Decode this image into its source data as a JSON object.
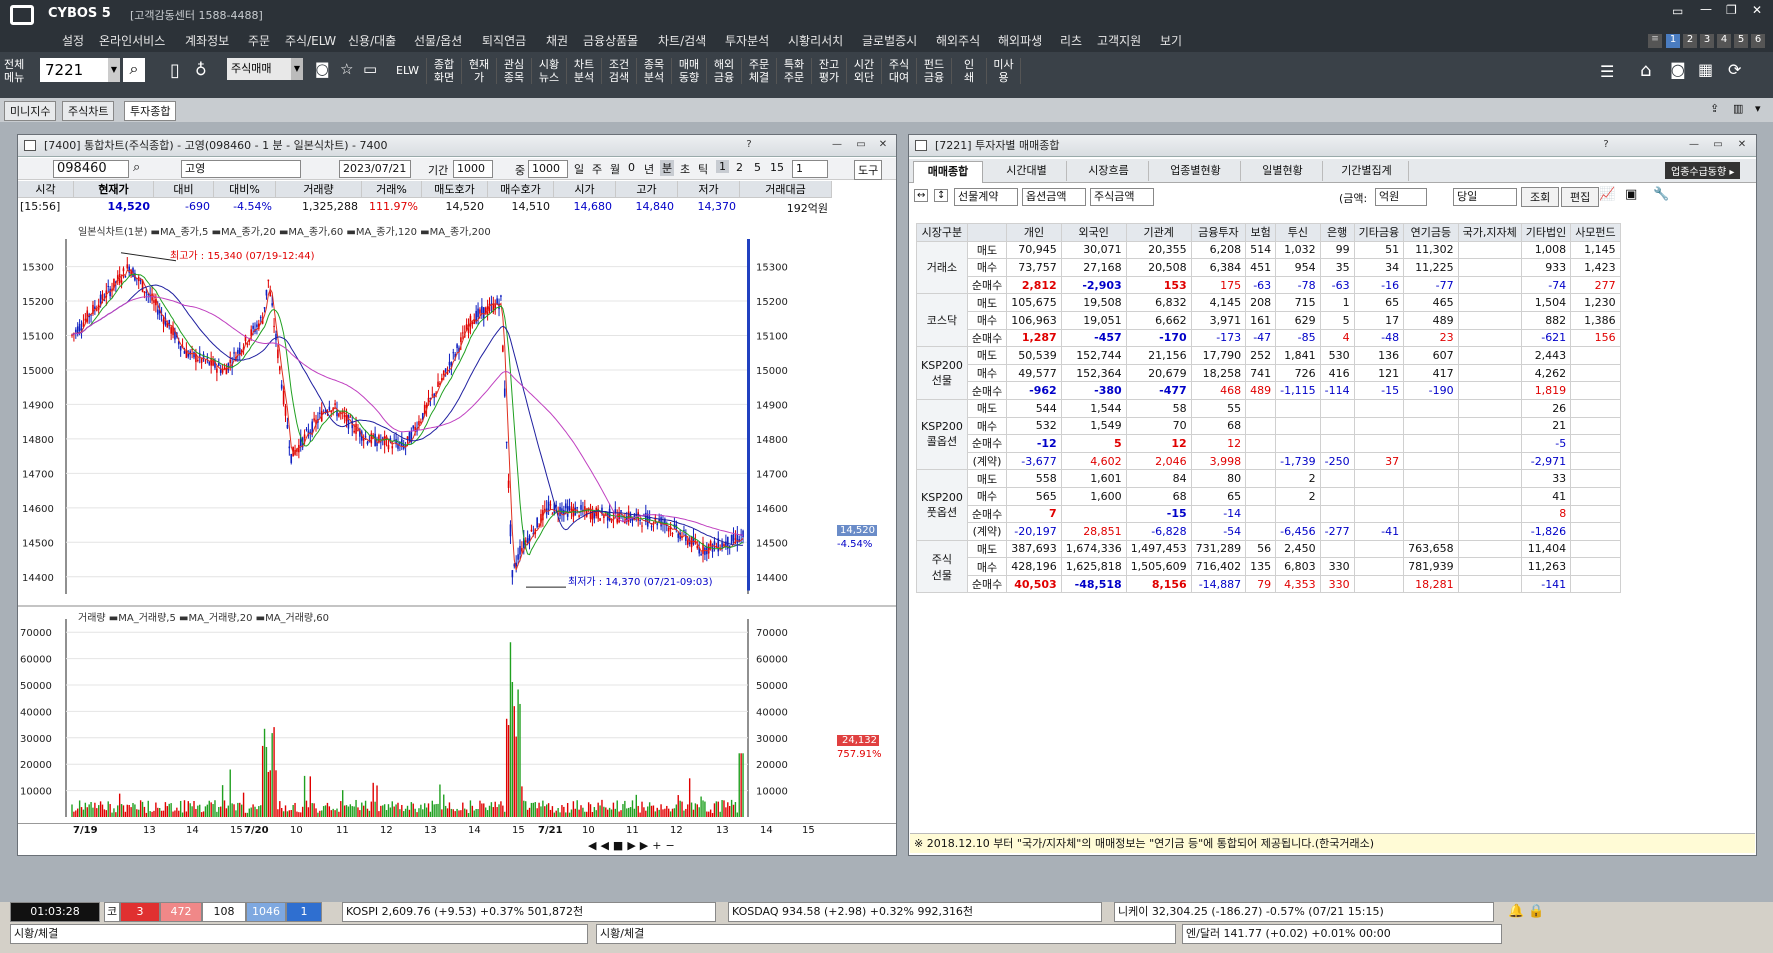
{
  "app": {
    "title": "CYBOS 5",
    "center": "[고객감동센터 1588-4488]",
    "full_menu": "전체\n메뉴",
    "screen_no": "7221",
    "menu_select": "주식매매",
    "elw": "ELW",
    "top_right": [
      "1",
      "2",
      "3",
      "4",
      "5",
      "6"
    ]
  },
  "menu": [
    "설정",
    "온라인서비스",
    "계좌정보",
    "주문",
    "주식/ELW",
    "신용/대출",
    "선물/옵션",
    "퇴직연금",
    "채권",
    "금융상품몰",
    "차트/검색",
    "투자분석",
    "시황리서치",
    "글로벌증시",
    "해외주식",
    "해외파생",
    "리츠",
    "고객지원",
    "보기"
  ],
  "toolbar_buttons": [
    "종합\n화면",
    "현재\n가",
    "관심\n종목",
    "시황\n뉴스",
    "차트\n분석",
    "조건\n검색",
    "종목\n분석",
    "매매\n동향",
    "해외\n금융",
    "주문\n체결",
    "특화\n주문",
    "잔고\n평가",
    "시간\n외단",
    "주식\n대여",
    "펀드\n금융",
    "인\n쇄",
    "미사\n용"
  ],
  "quick_tabs": [
    "미니지수",
    "주식차트",
    "투자종합"
  ],
  "chart_window": {
    "title": "[7400] 통합차트(주식종합) - 고영(098460 - 1 분 - 일본식차트) - 7400",
    "code": "098460",
    "name": "고영",
    "date": "2023/07/21",
    "period_label": "기간",
    "period": "1000",
    "count_label": "중",
    "count": "1000",
    "period_buttons": [
      "일",
      "주",
      "월",
      "0",
      "년",
      "분",
      "초",
      "틱",
      "1",
      "2",
      "5",
      "15",
      "1"
    ],
    "tools_label": "도구",
    "quote_headers": [
      "시각",
      "현재가",
      "대비",
      "대비%",
      "거래량",
      "거래%",
      "매도호가",
      "매수호가",
      "시가",
      "고가",
      "저가",
      "거래대금"
    ],
    "quote_values": [
      "[15:56]",
      "14,520",
      "-690",
      "-4.54%",
      "1,325,288",
      "111.97%",
      "14,520",
      "14,510",
      "14,680",
      "14,840",
      "14,370",
      "192억원"
    ],
    "legend": "일본식차트(1분) ▬MA_종가,5 ▬MA_종가,20 ▬MA_종가,60 ▬MA_종가,120 ▬MA_종가,200",
    "high_note": "최고가 : 15,340 (07/19-12:44)",
    "low_note": "최저가 : 14,370 (07/21-09:03)",
    "price_ticks": [
      "15300",
      "15200",
      "15100",
      "15000",
      "14900",
      "14800",
      "14700",
      "14600",
      "14500",
      "14400"
    ],
    "price_badge": "14,520",
    "pct_badge": "-4.54%",
    "vol_legend": "거래량 ▬MA_거래량,5 ▬MA_거래량,20 ▬MA_거래량,60",
    "vol_ticks": [
      "70000",
      "60000",
      "50000",
      "40000",
      "30000",
      "20000",
      "10000"
    ],
    "vol_badge": "24,132",
    "vol_pct_badge": "757.91%",
    "x_labels": [
      "7/19",
      "13",
      "14",
      "15",
      "7/20",
      "10",
      "11",
      "12",
      "13",
      "14",
      "15",
      "7/21",
      "10",
      "11",
      "12",
      "13",
      "14",
      "15"
    ]
  },
  "chart_data": {
    "type": "candlestick",
    "x": [
      "7/19",
      "7/20",
      "7/21"
    ],
    "high": 15340,
    "low": 14370,
    "last": 14520,
    "ylim": [
      14350,
      15380
    ],
    "volume_ylim": [
      0,
      75000
    ],
    "volume_last": 24132
  },
  "inv_window": {
    "title": "[7221] 투자자별 매매종합",
    "tabs": [
      "매매종합",
      "시간대별",
      "시장흐름",
      "업종별현황",
      "일별현황",
      "기간별집계"
    ],
    "right_btn": "업종수급동향 ▸",
    "selects": [
      "선물계약",
      "옵션금액",
      "주식금액"
    ],
    "unit_label": "(금액:",
    "unit": "억원",
    "period": "당일",
    "query_btn": "조회",
    "edit_btn": "편집",
    "headers": [
      "시장구분",
      "",
      "개인",
      "외국인",
      "기관계",
      "금융투자",
      "보험",
      "투신",
      "은행",
      "기타금융",
      "연기금등",
      "국가,지자체",
      "기타법인",
      "사모펀드"
    ],
    "groups": [
      {
        "name": "거래소",
        "rows": [
          [
            "매도",
            "70,945",
            "30,071",
            "20,355",
            "6,208",
            "514",
            "1,032",
            "99",
            "51",
            "11,302",
            "",
            "1,008",
            "1,145"
          ],
          [
            "매수",
            "73,757",
            "27,168",
            "20,508",
            "6,384",
            "451",
            "954",
            "35",
            "34",
            "11,225",
            "",
            "933",
            "1,423"
          ],
          [
            "순매수",
            "2,812",
            "-2,903",
            "153",
            "175",
            "-63",
            "-78",
            "-63",
            "-16",
            "-77",
            "",
            "-74",
            "277"
          ]
        ]
      },
      {
        "name": "코스닥",
        "rows": [
          [
            "매도",
            "105,675",
            "19,508",
            "6,832",
            "4,145",
            "208",
            "715",
            "1",
            "65",
            "465",
            "",
            "1,504",
            "1,230"
          ],
          [
            "매수",
            "106,963",
            "19,051",
            "6,662",
            "3,971",
            "161",
            "629",
            "5",
            "17",
            "489",
            "",
            "882",
            "1,386"
          ],
          [
            "순매수",
            "1,287",
            "-457",
            "-170",
            "-173",
            "-47",
            "-85",
            "4",
            "-48",
            "23",
            "",
            "-621",
            "156"
          ]
        ]
      },
      {
        "name": "KSP200\n선물",
        "rows": [
          [
            "매도",
            "50,539",
            "152,744",
            "21,156",
            "17,790",
            "252",
            "1,841",
            "530",
            "136",
            "607",
            "",
            "2,443",
            ""
          ],
          [
            "매수",
            "49,577",
            "152,364",
            "20,679",
            "18,258",
            "741",
            "726",
            "416",
            "121",
            "417",
            "",
            "4,262",
            ""
          ],
          [
            "순매수",
            "-962",
            "-380",
            "-477",
            "468",
            "489",
            "-1,115",
            "-114",
            "-15",
            "-190",
            "",
            "1,819",
            ""
          ]
        ]
      },
      {
        "name": "KSP200\n콜옵션",
        "rows": [
          [
            "매도",
            "544",
            "1,544",
            "58",
            "55",
            "",
            "",
            "",
            "",
            "",
            "",
            "26",
            ""
          ],
          [
            "매수",
            "532",
            "1,549",
            "70",
            "68",
            "",
            "",
            "",
            "",
            "",
            "",
            "21",
            ""
          ],
          [
            "순매수",
            "-12",
            "5",
            "12",
            "12",
            "",
            "",
            "",
            "",
            "",
            "",
            "-5",
            ""
          ],
          [
            "(계약)",
            "-3,677",
            "4,602",
            "2,046",
            "3,998",
            "",
            "-1,739",
            "-250",
            "37",
            "",
            "",
            "-2,971",
            ""
          ]
        ]
      },
      {
        "name": "KSP200\n풋옵션",
        "rows": [
          [
            "매도",
            "558",
            "1,601",
            "84",
            "80",
            "",
            "2",
            "",
            "",
            "",
            "",
            "33",
            ""
          ],
          [
            "매수",
            "565",
            "1,600",
            "68",
            "65",
            "",
            "2",
            "",
            "",
            "",
            "",
            "41",
            ""
          ],
          [
            "순매수",
            "7",
            "",
            "-15",
            "-14",
            "",
            "",
            "",
            "",
            "",
            "",
            "8",
            ""
          ],
          [
            "(계약)",
            "-20,197",
            "28,851",
            "-6,828",
            "-54",
            "",
            "-6,456",
            "-277",
            "-41",
            "",
            "",
            "-1,826",
            ""
          ]
        ]
      },
      {
        "name": "주식\n선물",
        "rows": [
          [
            "매도",
            "387,693",
            "1,674,336",
            "1,497,453",
            "731,289",
            "56",
            "2,450",
            "",
            "",
            "763,658",
            "",
            "11,404",
            ""
          ],
          [
            "매수",
            "428,196",
            "1,625,818",
            "1,505,609",
            "716,402",
            "135",
            "6,803",
            "330",
            "",
            "781,939",
            "",
            "11,263",
            ""
          ],
          [
            "순매수",
            "40,503",
            "-48,518",
            "8,156",
            "-14,887",
            "79",
            "4,353",
            "330",
            "",
            "18,281",
            "",
            "-141",
            ""
          ]
        ]
      }
    ],
    "notice": "※ 2018.12.10 부터 \"국가/지자체\"의 매매정보는 \"연기금 등\"에 통합되어 제공됩니다.(한국거래소)"
  },
  "status": {
    "time": "01:03:28",
    "up_label": "코",
    "up": "3",
    "up2": "472",
    "flat": "108",
    "down": "1046",
    "down2": "1",
    "kospi": "KOSPI  2,609.76 (+9.53) +0.37% 501,872천",
    "kosdaq": "KOSDAQ  934.58 (+2.98) +0.32% 992,316천",
    "nikkei": "니케이  32,304.25 (-186.27) -0.57% (07/21 15:15)",
    "sise1": "시황/체결",
    "sise2": "시황/체결",
    "fx": "엔/달러  141.77 (+0.02) +0.01% 00:00"
  }
}
